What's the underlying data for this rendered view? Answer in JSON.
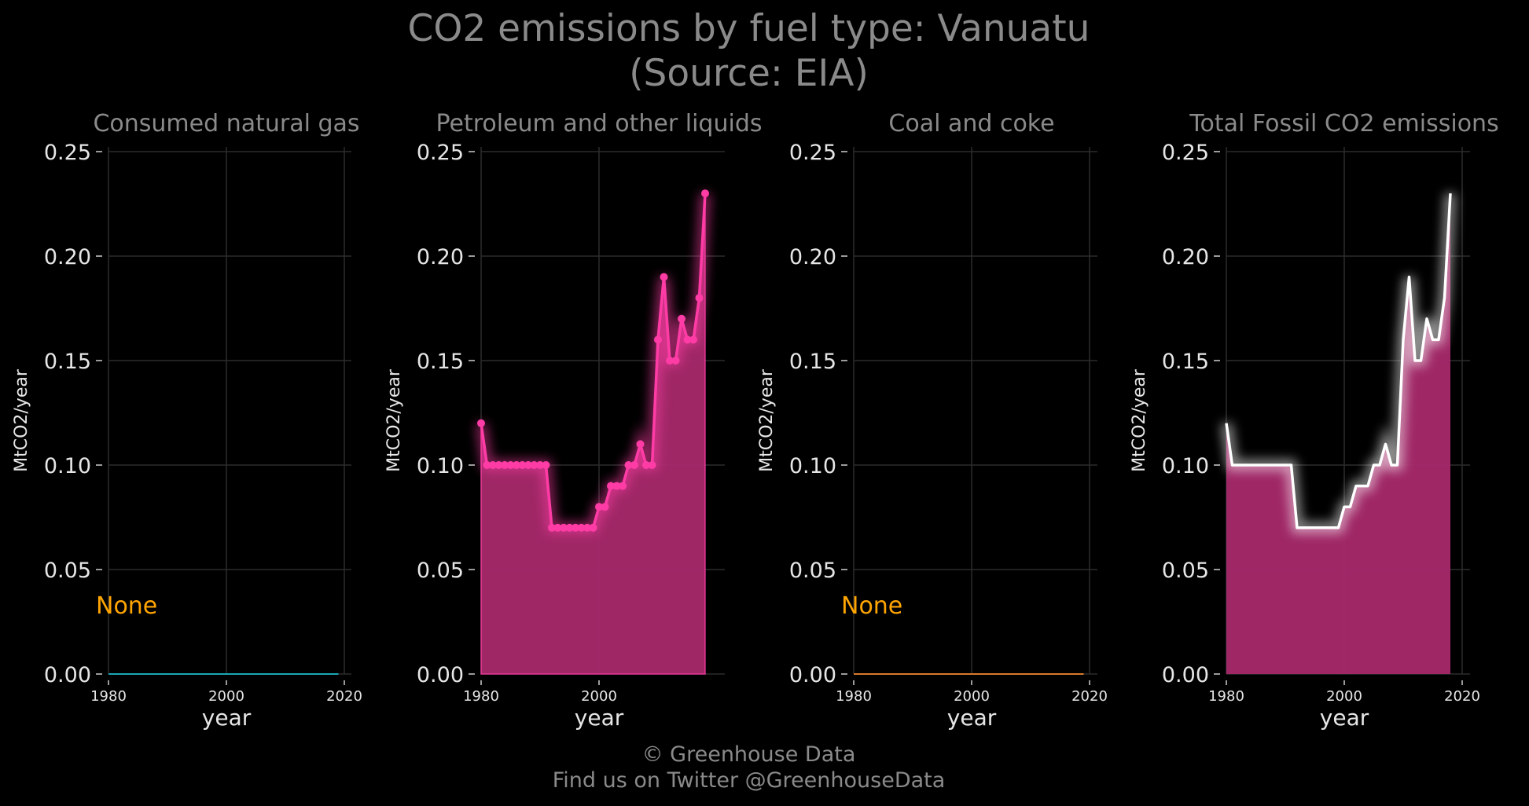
{
  "title": [
    "CO2 emissions by fuel type: Vanuatu",
    "(Source: EIA)"
  ],
  "footer": [
    "© Greenhouse Data",
    "Find us on Twitter @GreenhouseData"
  ],
  "colors": {
    "background": "#000000",
    "grid": "#2c2c2c",
    "title_text": "#8a8a8a",
    "tick_text": "#e6e6e6",
    "natural_gas": "#1aa7b5",
    "petroleum": "#ff3ca6",
    "petroleum_fill": "#a8296c",
    "coal": "#d97a2b",
    "total_line": "#ffffff",
    "none_label": "#ffa500"
  },
  "chart_data": [
    {
      "type": "line",
      "title": "Consumed natural gas",
      "xlabel": "year",
      "ylabel": "MtCO2/year",
      "xlim": [
        1980,
        2020
      ],
      "ylim": [
        0,
        0.25
      ],
      "x_ticks": [
        "1980",
        "2000",
        "2020"
      ],
      "y_ticks": [
        "0.00",
        "0.05",
        "0.10",
        "0.15",
        "0.20",
        "0.25"
      ],
      "grid": true,
      "annotation": "None",
      "series": [
        {
          "color_key": "natural_gas",
          "x": [
            1980,
            2019
          ],
          "y": [
            0,
            0
          ]
        }
      ]
    },
    {
      "type": "area",
      "title": "Petroleum and other liquids",
      "xlabel": "year",
      "ylabel": "MtCO2/year",
      "xlim": [
        1980,
        2020
      ],
      "ylim": [
        0,
        0.25
      ],
      "x_ticks": [
        "1980",
        "2000"
      ],
      "y_ticks": [
        "0.00",
        "0.05",
        "0.10",
        "0.15",
        "0.20",
        "0.25"
      ],
      "grid": true,
      "series": [
        {
          "color_key": "petroleum",
          "markers": true,
          "x": [
            1980,
            1981,
            1982,
            1983,
            1984,
            1985,
            1986,
            1987,
            1988,
            1989,
            1990,
            1991,
            1992,
            1993,
            1994,
            1995,
            1996,
            1997,
            1998,
            1999,
            2000,
            2001,
            2002,
            2003,
            2004,
            2005,
            2006,
            2007,
            2008,
            2009,
            2010,
            2011,
            2012,
            2013,
            2014,
            2015,
            2016,
            2017,
            2018
          ],
          "y": [
            0.12,
            0.1,
            0.1,
            0.1,
            0.1,
            0.1,
            0.1,
            0.1,
            0.1,
            0.1,
            0.1,
            0.1,
            0.07,
            0.07,
            0.07,
            0.07,
            0.07,
            0.07,
            0.07,
            0.07,
            0.08,
            0.08,
            0.09,
            0.09,
            0.09,
            0.1,
            0.1,
            0.11,
            0.1,
            0.1,
            0.16,
            0.19,
            0.15,
            0.15,
            0.17,
            0.16,
            0.16,
            0.18,
            0.23
          ]
        }
      ]
    },
    {
      "type": "line",
      "title": "Coal and coke",
      "xlabel": "year",
      "ylabel": "MtCO2/year",
      "xlim": [
        1980,
        2020
      ],
      "ylim": [
        0,
        0.25
      ],
      "x_ticks": [
        "1980",
        "2000",
        "2020"
      ],
      "y_ticks": [
        "0.00",
        "0.05",
        "0.10",
        "0.15",
        "0.20",
        "0.25"
      ],
      "grid": true,
      "annotation": "None",
      "series": [
        {
          "color_key": "coal",
          "x": [
            1980,
            2019
          ],
          "y": [
            0,
            0
          ]
        }
      ]
    },
    {
      "type": "area",
      "title": "Total Fossil CO2 emissions",
      "xlabel": "year",
      "ylabel": "MtCO2/year",
      "xlim": [
        1980,
        2020
      ],
      "ylim": [
        0,
        0.25
      ],
      "x_ticks": [
        "1980",
        "2000",
        "2020"
      ],
      "y_ticks": [
        "0.00",
        "0.05",
        "0.10",
        "0.15",
        "0.20",
        "0.25"
      ],
      "grid": true,
      "series": [
        {
          "color_key": "total_line",
          "markers": false,
          "x": [
            1980,
            1981,
            1982,
            1983,
            1984,
            1985,
            1986,
            1987,
            1988,
            1989,
            1990,
            1991,
            1992,
            1993,
            1994,
            1995,
            1996,
            1997,
            1998,
            1999,
            2000,
            2001,
            2002,
            2003,
            2004,
            2005,
            2006,
            2007,
            2008,
            2009,
            2010,
            2011,
            2012,
            2013,
            2014,
            2015,
            2016,
            2017,
            2018
          ],
          "y": [
            0.12,
            0.1,
            0.1,
            0.1,
            0.1,
            0.1,
            0.1,
            0.1,
            0.1,
            0.1,
            0.1,
            0.1,
            0.07,
            0.07,
            0.07,
            0.07,
            0.07,
            0.07,
            0.07,
            0.07,
            0.08,
            0.08,
            0.09,
            0.09,
            0.09,
            0.1,
            0.1,
            0.11,
            0.1,
            0.1,
            0.16,
            0.19,
            0.15,
            0.15,
            0.17,
            0.16,
            0.16,
            0.18,
            0.23
          ]
        }
      ]
    }
  ]
}
